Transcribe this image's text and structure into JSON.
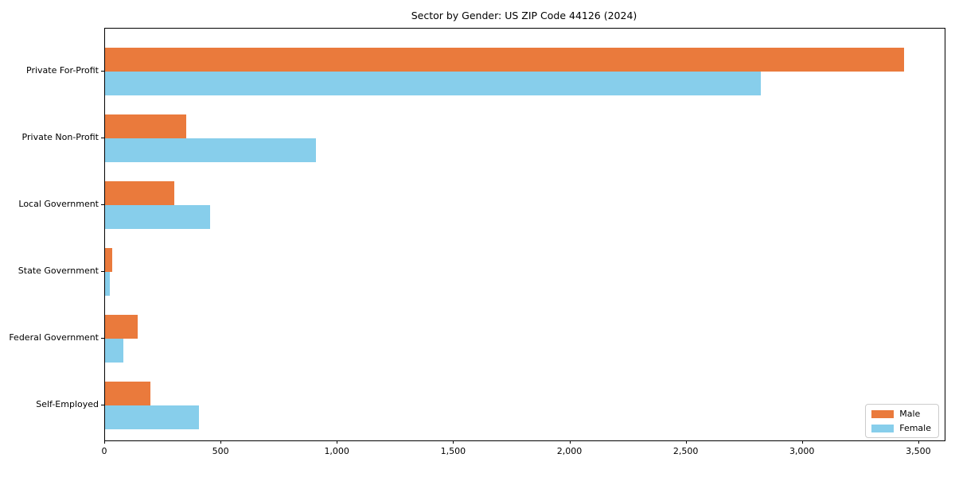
{
  "chart_data": {
    "type": "bar",
    "orientation": "horizontal",
    "title": "Sector by Gender: US ZIP Code 44126 (2024)",
    "categories": [
      "Private For-Profit",
      "Private Non-Profit",
      "Local Government",
      "State Government",
      "Federal Government",
      "Self-Employed"
    ],
    "series": [
      {
        "name": "Male",
        "color": "#ea7a3c",
        "values": [
          3435,
          350,
          297,
          31,
          140,
          196
        ]
      },
      {
        "name": "Female",
        "color": "#87ceeb",
        "values": [
          2820,
          908,
          451,
          21,
          78,
          405
        ]
      }
    ],
    "xlabel": "",
    "ylabel": "",
    "xlim": [
      0,
      3610
    ],
    "xticks": [
      0,
      500,
      1000,
      1500,
      2000,
      2500,
      3000,
      3500
    ],
    "xtick_labels": [
      "0",
      "500",
      "1,000",
      "1,500",
      "2,000",
      "2,500",
      "3,000",
      "3,500"
    ],
    "grid": false,
    "legend_position": "lower right",
    "spine_color": "#000000",
    "background_color": "#ffffff"
  }
}
